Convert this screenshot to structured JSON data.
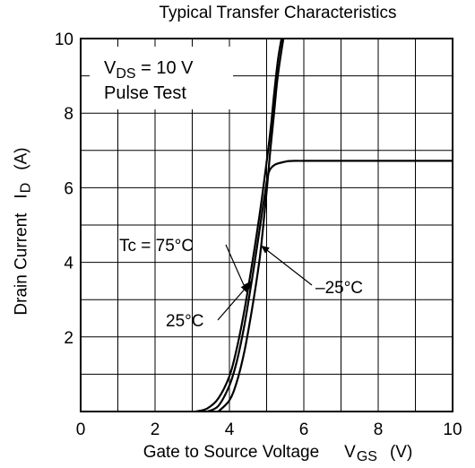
{
  "chart_data": {
    "type": "line",
    "title": "Typical Transfer Characteristics",
    "xlabel": {
      "text": "Gate to Source Voltage",
      "symbol": "V",
      "subscript": "GS",
      "unit": "(V)"
    },
    "ylabel": {
      "text": "Drain Current",
      "symbol": "I",
      "subscript": "D",
      "unit": "(A)"
    },
    "xlim": [
      0,
      10
    ],
    "ylim": [
      0,
      10
    ],
    "x_ticks": [
      0,
      2,
      4,
      6,
      8,
      10
    ],
    "y_ticks": [
      2,
      4,
      6,
      8,
      10
    ],
    "grid": true,
    "conditions": {
      "line1_symbol": "V",
      "line1_subscript": "DS",
      "line1_rest": " = 10 V",
      "line2": "Pulse Test"
    },
    "series": [
      {
        "name": "Tc = 75°C",
        "label": "Tc = 75°C",
        "x": [
          3.1,
          3.4,
          3.7,
          4.0,
          4.2,
          4.4,
          4.6,
          4.8,
          4.95,
          5.1,
          5.2,
          5.3,
          5.4
        ],
        "y": [
          0.0,
          0.08,
          0.35,
          0.95,
          1.7,
          2.7,
          3.9,
          5.2,
          6.3,
          7.5,
          8.5,
          9.4,
          10.0
        ]
      },
      {
        "name": "25°C",
        "label": "25°C",
        "x": [
          3.4,
          3.7,
          4.0,
          4.2,
          4.4,
          4.6,
          4.8,
          4.95,
          5.1,
          5.5,
          6.0,
          7.0,
          8.0,
          9.0,
          10.0
        ],
        "y": [
          0.0,
          0.15,
          0.7,
          1.35,
          2.3,
          3.5,
          4.8,
          5.8,
          6.5,
          6.7,
          6.72,
          6.72,
          6.72,
          6.72,
          6.72
        ]
      },
      {
        "name": "–25°C",
        "label": "–25°C",
        "x": [
          3.7,
          4.0,
          4.2,
          4.4,
          4.6,
          4.8,
          4.9,
          5.0,
          5.1,
          5.2,
          5.3,
          5.45
        ],
        "y": [
          0.0,
          0.3,
          0.8,
          1.6,
          2.7,
          4.0,
          4.9,
          5.9,
          7.0,
          8.0,
          9.0,
          10.0
        ]
      }
    ]
  }
}
